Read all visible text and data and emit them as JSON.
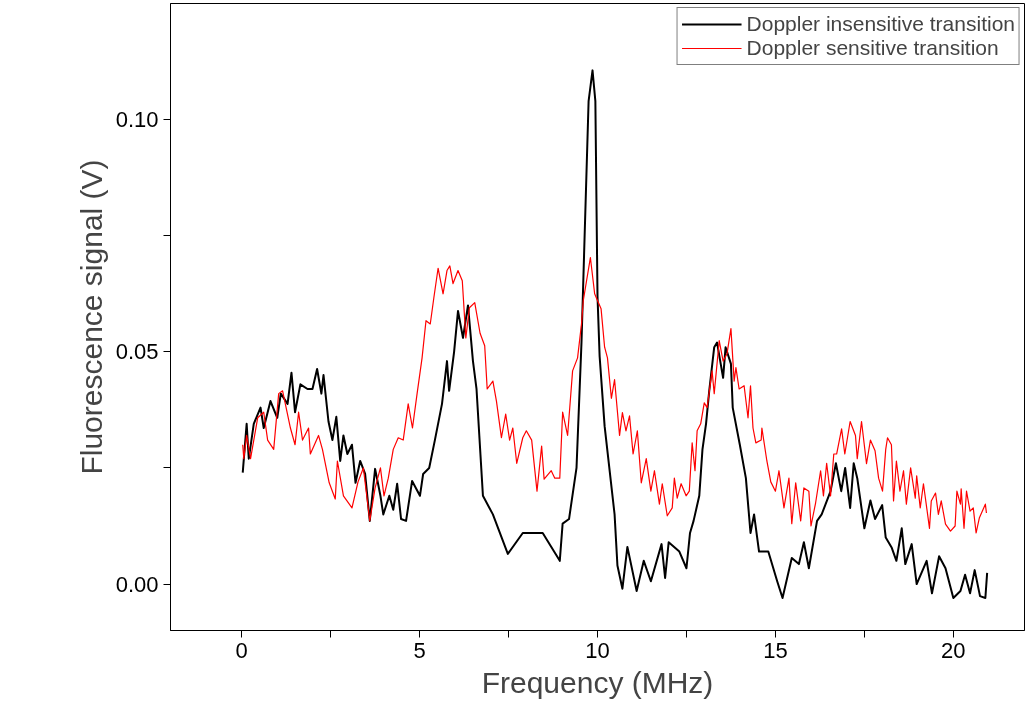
{
  "chart_data": {
    "type": "line",
    "xlabel": "Frequency (MHz)",
    "ylabel": "Fluorescence signal (V)",
    "xlim": [
      -2,
      22
    ],
    "ylim": [
      -0.01,
      0.125
    ],
    "xticks": [
      0,
      {
        "value": 2.5,
        "label": null
      },
      5,
      {
        "value": 7.5,
        "label": null
      },
      10,
      {
        "value": 12.5,
        "label": null
      },
      15,
      {
        "value": 17.5,
        "label": null
      },
      20
    ],
    "yticks": [
      {
        "value": 0,
        "label": "0.00"
      },
      {
        "value": 0.025,
        "label": null
      },
      {
        "value": 0.05,
        "label": "0.05"
      },
      {
        "value": 0.075,
        "label": null
      },
      {
        "value": 0.1,
        "label": "0.10"
      }
    ],
    "grid": false,
    "legend": "top right",
    "line_style": "solid",
    "marker": "none",
    "series": [
      {
        "name": "Doppler insensitive transition",
        "color": "#000000",
        "x": [
          0.03,
          0.14,
          0.2,
          0.34,
          0.53,
          0.62,
          0.81,
          1.0,
          1.1,
          1.29,
          1.4,
          1.5,
          1.65,
          1.85,
          1.99,
          2.12,
          2.24,
          2.3,
          2.44,
          2.55,
          2.66,
          2.77,
          2.86,
          2.97,
          3.1,
          3.2,
          3.33,
          3.47,
          3.6,
          3.75,
          3.9,
          3.98,
          4.15,
          4.26,
          4.37,
          4.48,
          4.62,
          4.79,
          5.01,
          5.1,
          5.27,
          5.43,
          5.63,
          5.77,
          5.83,
          5.97,
          6.08,
          6.22,
          6.36,
          6.5,
          6.6,
          6.78,
          7.06,
          7.48,
          7.9,
          8.46,
          8.94,
          9.02,
          9.2,
          9.41,
          9.55,
          9.75,
          9.86,
          9.94,
          10.0,
          10.06,
          10.2,
          10.48,
          10.56,
          10.7,
          10.84,
          11.1,
          11.3,
          11.5,
          11.8,
          11.9,
          12.0,
          12.3,
          12.5,
          12.6,
          12.7,
          12.86,
          12.95,
          13.05,
          13.14,
          13.28,
          13.36,
          13.53,
          13.6,
          13.75,
          13.8,
          14.0,
          14.17,
          14.3,
          14.4,
          14.54,
          14.8,
          15.05,
          15.2,
          15.46,
          15.66,
          15.8,
          15.94,
          16.17,
          16.3,
          16.55,
          16.7,
          16.85,
          16.96,
          17.1,
          17.2,
          17.3,
          17.5,
          17.67,
          17.8,
          18.0,
          18.1,
          18.27,
          18.4,
          18.55,
          18.65,
          18.83,
          18.97,
          19.25,
          19.4,
          19.6,
          19.78,
          20.0,
          20.2,
          20.33,
          20.47,
          20.6,
          20.75,
          20.9,
          20.95
        ],
        "values": [
          0.024,
          0.0345,
          0.027,
          0.0345,
          0.038,
          0.0336,
          0.0394,
          0.0358,
          0.041,
          0.0388,
          0.0455,
          0.037,
          0.043,
          0.042,
          0.042,
          0.0463,
          0.041,
          0.045,
          0.035,
          0.031,
          0.036,
          0.0265,
          0.032,
          0.028,
          0.03,
          0.0218,
          0.0265,
          0.0237,
          0.0136,
          0.0248,
          0.019,
          0.015,
          0.019,
          0.016,
          0.0216,
          0.014,
          0.0136,
          0.0222,
          0.019,
          0.0237,
          0.025,
          0.031,
          0.0388,
          0.048,
          0.0416,
          0.05,
          0.0588,
          0.053,
          0.06,
          0.048,
          0.042,
          0.019,
          0.015,
          0.0065,
          0.011,
          0.011,
          0.005,
          0.013,
          0.014,
          0.025,
          0.052,
          0.104,
          0.1106,
          0.104,
          0.062,
          0.049,
          0.034,
          0.015,
          0.004,
          -0.001,
          0.008,
          -0.0015,
          0.005,
          0.0006,
          0.0086,
          0.0013,
          0.009,
          0.007,
          0.0034,
          0.011,
          0.0136,
          0.019,
          0.029,
          0.0345,
          0.0416,
          0.051,
          0.052,
          0.0444,
          0.051,
          0.0474,
          0.038,
          0.03,
          0.0228,
          0.011,
          0.015,
          0.007,
          0.007,
          0.0006,
          -0.003,
          0.0056,
          0.0043,
          0.009,
          0.0034,
          0.0136,
          0.015,
          0.02,
          0.026,
          0.02,
          0.025,
          0.0164,
          0.026,
          0.0228,
          0.012,
          0.018,
          0.014,
          0.017,
          0.01,
          0.0078,
          0.005,
          0.012,
          0.0043,
          0.0086,
          0.0,
          0.005,
          -0.002,
          0.006,
          0.0034,
          -0.003,
          -0.0015,
          0.002,
          -0.002,
          0.003,
          -0.0026,
          -0.003,
          0.0024
        ]
      },
      {
        "name": "Doppler sensitive transition",
        "color": "#ff0000",
        "x": [
          0.03,
          0.06,
          0.14,
          0.25,
          0.45,
          0.62,
          0.73,
          0.9,
          1.04,
          1.15,
          1.37,
          1.5,
          1.6,
          1.71,
          1.88,
          1.93,
          2.16,
          2.27,
          2.46,
          2.63,
          2.69,
          2.86,
          3.1,
          3.27,
          3.42,
          3.6,
          3.75,
          3.9,
          4.0,
          4.12,
          4.26,
          4.4,
          4.54,
          4.68,
          4.8,
          4.93,
          5.07,
          5.18,
          5.3,
          5.4,
          5.52,
          5.66,
          5.77,
          5.85,
          5.94,
          6.08,
          6.2,
          6.3,
          6.4,
          6.55,
          6.7,
          6.83,
          6.9,
          7.06,
          7.16,
          7.3,
          7.42,
          7.53,
          7.62,
          7.73,
          7.9,
          8.0,
          8.15,
          8.3,
          8.43,
          8.5,
          8.7,
          8.8,
          8.94,
          9.02,
          9.16,
          9.3,
          9.44,
          9.55,
          9.6,
          9.8,
          9.92,
          9.97,
          10.1,
          10.2,
          10.28,
          10.39,
          10.48,
          10.62,
          10.7,
          10.8,
          10.9,
          11.0,
          11.12,
          11.23,
          11.37,
          11.5,
          11.6,
          11.74,
          11.82,
          11.96,
          12.1,
          12.16,
          12.24,
          12.35,
          12.49,
          12.58,
          12.66,
          12.74,
          12.8,
          12.9,
          13.0,
          13.08,
          13.22,
          13.28,
          13.42,
          13.53,
          13.64,
          13.75,
          13.84,
          13.89,
          13.98,
          14.12,
          14.23,
          14.3,
          14.37,
          14.45,
          14.6,
          14.62,
          14.76,
          14.87,
          15.0,
          15.1,
          15.24,
          15.38,
          15.46,
          15.57,
          15.71,
          15.8,
          15.94,
          16.0,
          16.13,
          16.27,
          16.35,
          16.44,
          16.55,
          16.64,
          16.72,
          16.86,
          16.95,
          17.1,
          17.25,
          17.3,
          17.42,
          17.56,
          17.67,
          17.8,
          17.9,
          18.01,
          18.1,
          18.15,
          18.26,
          18.32,
          18.4,
          18.5,
          18.6,
          18.68,
          18.8,
          18.93,
          18.97,
          19.07,
          19.16,
          19.33,
          19.38,
          19.5,
          19.58,
          19.66,
          19.78,
          19.92,
          20.05,
          20.1,
          20.2,
          20.22,
          20.3,
          20.37,
          20.47,
          20.56,
          20.64,
          20.73,
          20.9,
          20.93
        ],
        "values": [
          0.03,
          0.027,
          0.032,
          0.027,
          0.0358,
          0.037,
          0.031,
          0.029,
          0.041,
          0.0416,
          0.0336,
          0.03,
          0.037,
          0.031,
          0.0336,
          0.028,
          0.032,
          0.029,
          0.0218,
          0.0183,
          0.0265,
          0.019,
          0.0164,
          0.022,
          0.025,
          0.0136,
          0.0207,
          0.025,
          0.019,
          0.0228,
          0.029,
          0.0315,
          0.031,
          0.0388,
          0.0336,
          0.041,
          0.0487,
          0.0567,
          0.056,
          0.0616,
          0.068,
          0.0625,
          0.0675,
          0.0685,
          0.0647,
          0.0675,
          0.0653,
          0.053,
          0.0595,
          0.0606,
          0.054,
          0.0513,
          0.042,
          0.0437,
          0.0394,
          0.0315,
          0.0366,
          0.031,
          0.0336,
          0.026,
          0.0315,
          0.033,
          0.031,
          0.02,
          0.0297,
          0.0226,
          0.0244,
          0.0228,
          0.0228,
          0.037,
          0.032,
          0.0459,
          0.0487,
          0.056,
          0.061,
          0.0703,
          0.0625,
          0.0616,
          0.0593,
          0.051,
          0.0487,
          0.04,
          0.044,
          0.032,
          0.0369,
          0.033,
          0.0362,
          0.028,
          0.033,
          0.0218,
          0.027,
          0.02,
          0.0244,
          0.0172,
          0.0216,
          0.0147,
          0.0164,
          0.0228,
          0.0185,
          0.0216,
          0.019,
          0.02,
          0.0304,
          0.0244,
          0.033,
          0.0345,
          0.039,
          0.038,
          0.0459,
          0.041,
          0.0524,
          0.048,
          0.0496,
          0.055,
          0.0437,
          0.0466,
          0.042,
          0.0427,
          0.0358,
          0.0427,
          0.0336,
          0.0304,
          0.031,
          0.0336,
          0.0265,
          0.022,
          0.02,
          0.0244,
          0.0164,
          0.0228,
          0.013,
          0.0218,
          0.0136,
          0.0207,
          0.02,
          0.0125,
          0.0175,
          0.0244,
          0.019,
          0.026,
          0.019,
          0.028,
          0.028,
          0.0334,
          0.028,
          0.035,
          0.032,
          0.027,
          0.035,
          0.0259,
          0.031,
          0.0287,
          0.0228,
          0.02,
          0.029,
          0.0315,
          0.03,
          0.0179,
          0.0265,
          0.02,
          0.0244,
          0.0172,
          0.025,
          0.0185,
          0.0233,
          0.0164,
          0.0216,
          0.012,
          0.0179,
          0.0196,
          0.015,
          0.0179,
          0.0129,
          0.0114,
          0.0125,
          0.02,
          0.0172,
          0.0205,
          0.012,
          0.02,
          0.0157,
          0.0164,
          0.011,
          0.0142,
          0.0172,
          0.0153
        ]
      }
    ]
  }
}
